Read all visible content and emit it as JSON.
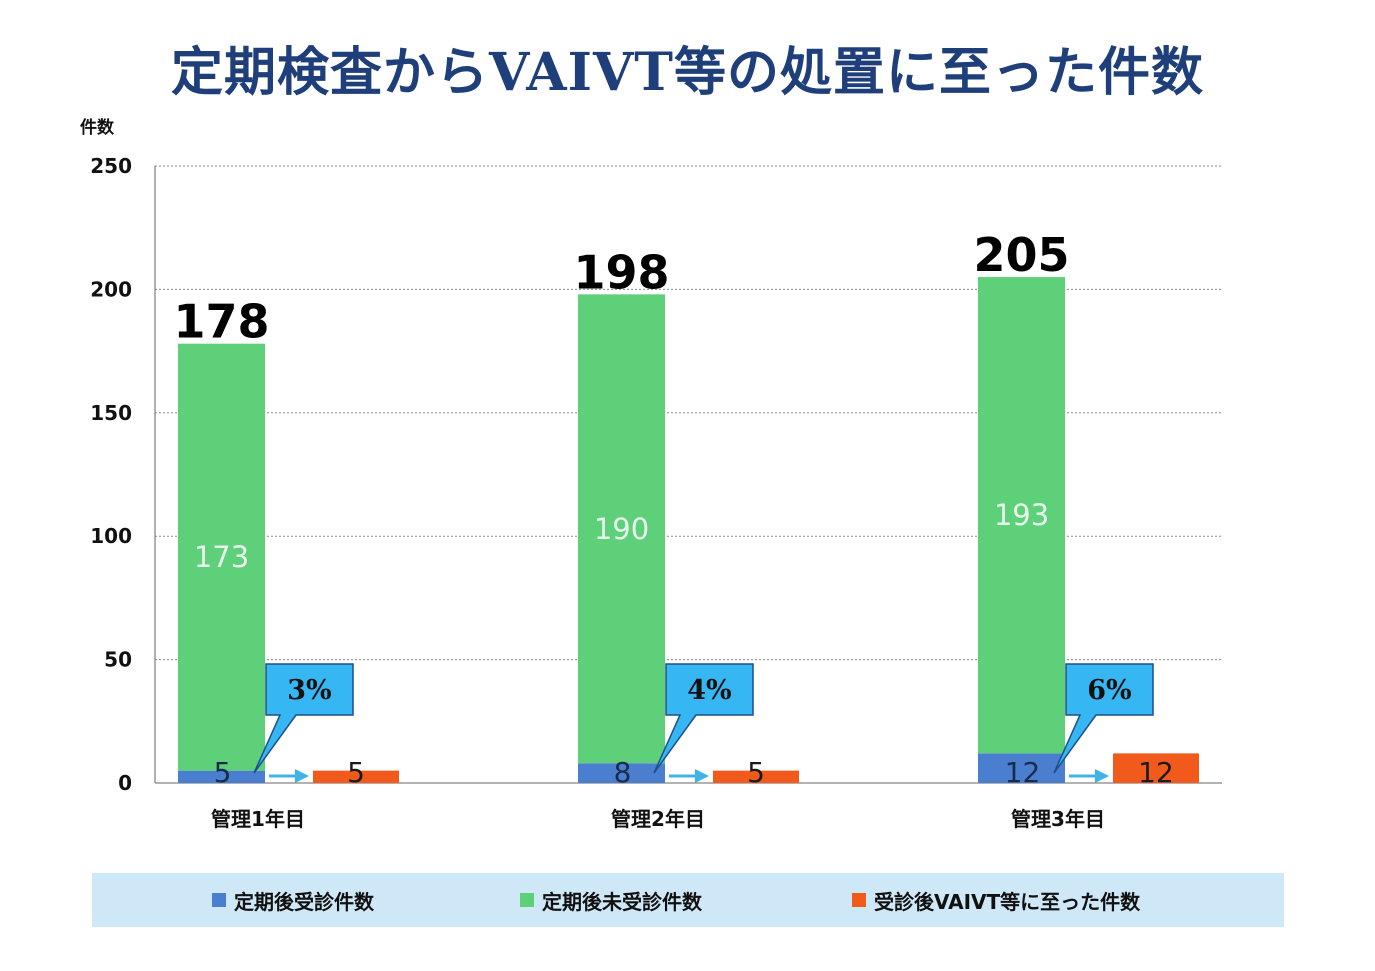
{
  "chart_data": {
    "type": "bar",
    "title": "定期検査からVAIVT等の処置に至った件数",
    "ylabel": "件数",
    "ylim": [
      0,
      250
    ],
    "yticks": [
      0,
      50,
      100,
      150,
      200,
      250
    ],
    "grid": true,
    "legend_position": "bottom",
    "categories": [
      "管理1年目",
      "管理2年目",
      "管理3年目"
    ],
    "series": [
      {
        "name": "定期後受診件数",
        "color": "#4a7fd0",
        "values": [
          5,
          8,
          12
        ]
      },
      {
        "name": "定期後未受診件数",
        "color": "#5ed07a",
        "values": [
          173,
          190,
          193
        ]
      },
      {
        "name": "受診後VAIVT等に至った件数",
        "color": "#f25a1c",
        "values": [
          5,
          5,
          12
        ]
      }
    ],
    "totals": [
      178,
      198,
      205
    ],
    "callouts": [
      "3%",
      "4%",
      "6%"
    ],
    "colors": {
      "callout_fill": "#36b6f2",
      "callout_border": "#1d4f8a",
      "arrow": "#3fb3ea",
      "legend_bg": "#cfe8f7",
      "title": "#1f3f7a"
    }
  }
}
